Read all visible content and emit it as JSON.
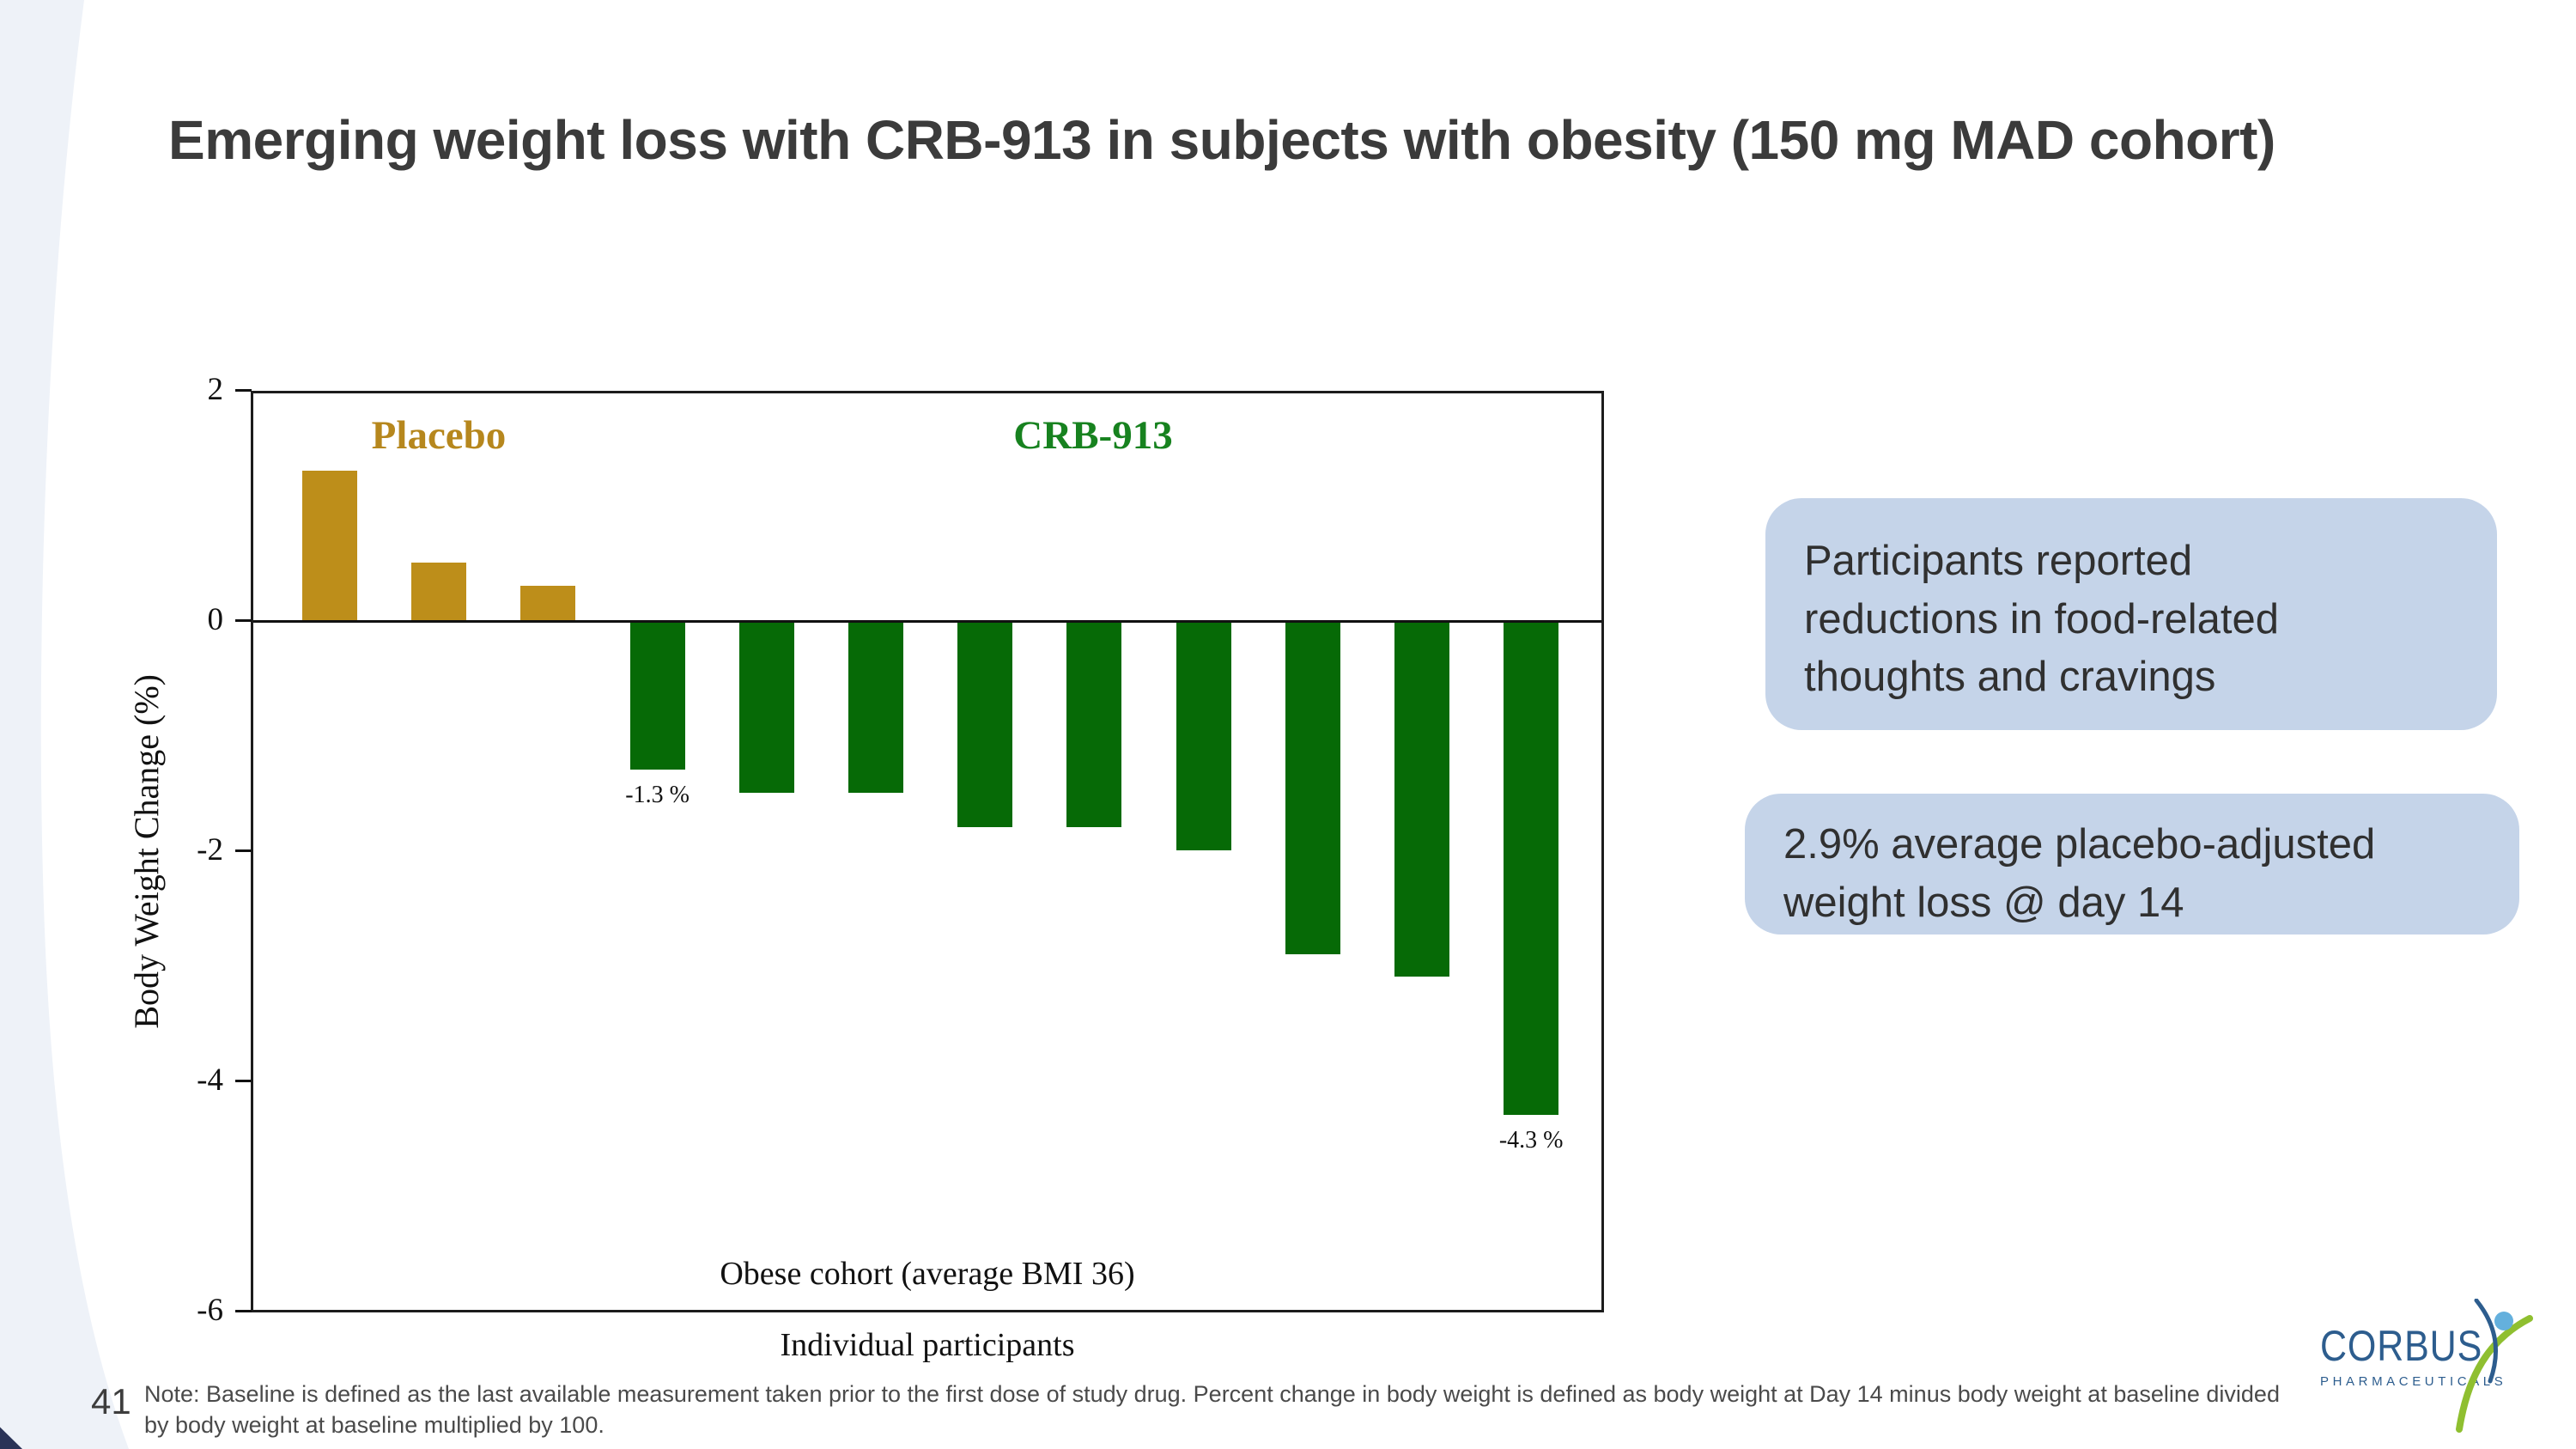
{
  "slide": {
    "title": "Emerging weight loss with CRB-913 in subjects with obesity (150 mg MAD cohort)",
    "page_number": "41",
    "footnote": "Note: Baseline is defined as the last available measurement taken prior to the first dose of study drug. Percent change in body weight is defined as body weight at Day 14 minus body weight at baseline divided by body weight at baseline multiplied by 100."
  },
  "callouts": [
    {
      "text": "Participants reported reductions in food-related thoughts and cravings"
    },
    {
      "text": "2.9% average placebo-adjusted weight loss @ day 14"
    }
  ],
  "logo": {
    "company": "CORBUS",
    "division": "PHARMACEUTICALS"
  },
  "colors": {
    "placebo_bar": "#bd8e1a",
    "crb_bar": "#066a06",
    "callout_bg": "#c5d4e9",
    "logo_navy": "#2d5d8e",
    "logo_green": "#8fbf30",
    "logo_lightblue": "#64b0dd"
  },
  "chart_data": {
    "type": "bar",
    "title": "",
    "ylabel": "Body Weight Change (%)",
    "xlabel_inside": "Obese cohort (average BMI 36)",
    "xlabel": "Individual participants",
    "ylim": [
      -6,
      2
    ],
    "yticks": [
      2,
      0,
      -2,
      -4,
      -6
    ],
    "grid": false,
    "groups": [
      {
        "name": "Placebo",
        "bar_color": "#bd8e1a",
        "label_color": "#b6871d",
        "values": [
          1.3,
          0.5,
          0.3
        ]
      },
      {
        "name": "CRB-913",
        "bar_color": "#066a06",
        "label_color": "#17821f",
        "values": [
          -1.3,
          -1.5,
          -1.5,
          -1.8,
          -1.8,
          -2.0,
          -2.9,
          -3.1,
          -4.3
        ]
      }
    ],
    "bar_value_labels": [
      {
        "bar_index": 3,
        "text": "-1.3 %"
      },
      {
        "bar_index": 11,
        "text": "-4.3 %"
      }
    ]
  }
}
